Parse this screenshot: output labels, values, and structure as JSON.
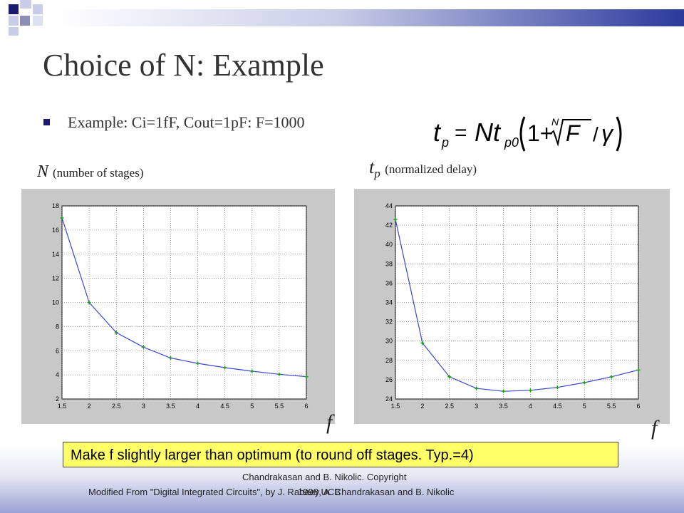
{
  "slide": {
    "title": "Choice of N: Example",
    "bullet": "Example: Ci=1fF, Cout=1pF: F=1000",
    "formula": "t_p = N t_p0 (1 + ᴺ√F / γ)",
    "n_label_main": "N",
    "n_label_sub": "(number of stages)",
    "tp_label_main": "t",
    "tp_label_subscript": "p",
    "tp_label_sub": "(normalized delay)",
    "f_label_left": "f",
    "f_label_right": "f",
    "note": "Make f slightly larger than optimum (to round off stages. Typ.=4)",
    "footer_line1": "Chandrakasan and B. Nikolic. Copyright",
    "footer_line2a": "Modified From \"Digital Integrated Circuits\", by J. Rabaey, A. Chandrakasan and B. Nikolic",
    "footer_line2b": "1998 UCB",
    "colors": {
      "plot_bg": "#c8c8c8",
      "line": "#3a46d6",
      "marker": "#1aa01a",
      "note_bg": "#ffff66",
      "accent": "#1a1a6e"
    }
  },
  "chart_data": [
    {
      "type": "line",
      "xlabel": "",
      "ylabel": "",
      "x": [
        1.5,
        2,
        2.5,
        3,
        3.5,
        4,
        4.5,
        5,
        5.5,
        6
      ],
      "series": [
        {
          "values": [
            17.0,
            10.0,
            7.5,
            6.3,
            5.4,
            4.95,
            4.6,
            4.3,
            4.05,
            3.85
          ]
        }
      ],
      "xlim": [
        1.5,
        6
      ],
      "ylim": [
        2,
        18
      ],
      "xticks": [
        1.5,
        2,
        2.5,
        3,
        3.5,
        4,
        4.5,
        5,
        5.5,
        6
      ],
      "yticks": [
        2,
        4,
        6,
        8,
        10,
        12,
        14,
        16,
        18
      ],
      "grid": true
    },
    {
      "type": "line",
      "xlabel": "",
      "ylabel": "",
      "x": [
        1.5,
        2,
        2.5,
        3,
        3.5,
        4,
        4.5,
        5,
        5.5,
        6
      ],
      "series": [
        {
          "values": [
            42.6,
            29.8,
            26.3,
            25.1,
            24.8,
            24.9,
            25.2,
            25.7,
            26.3,
            27.0
          ]
        }
      ],
      "xlim": [
        1.5,
        6
      ],
      "ylim": [
        24,
        44
      ],
      "xticks": [
        1.5,
        2,
        2.5,
        3,
        3.5,
        4,
        4.5,
        5,
        5.5,
        6
      ],
      "yticks": [
        24,
        26,
        28,
        30,
        32,
        34,
        36,
        38,
        40,
        42,
        44
      ],
      "grid": true
    }
  ]
}
